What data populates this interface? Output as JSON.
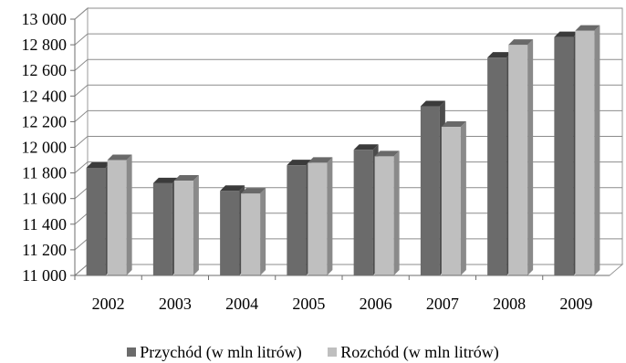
{
  "chart_data": {
    "type": "bar",
    "style": "3d-clustered-column",
    "categories": [
      "2002",
      "2003",
      "2004",
      "2005",
      "2006",
      "2007",
      "2008",
      "2009"
    ],
    "series": [
      {
        "name": "Przychód (w mln litrów)",
        "color": "#6b6b6b",
        "values": [
          11840,
          11720,
          11660,
          11860,
          11980,
          12320,
          12700,
          12860
        ]
      },
      {
        "name": "Rozchód (w mln litrów)",
        "color": "#bfbfbf",
        "values": [
          11900,
          11740,
          11640,
          11880,
          11930,
          12160,
          12800,
          12910
        ]
      }
    ],
    "ylim": [
      11000,
      13000
    ],
    "ytick_step": 200,
    "ytick_labels": [
      "11 000",
      "11 200",
      "11 400",
      "11 600",
      "11 800",
      "12 000",
      "12 200",
      "12 400",
      "12 600",
      "12 800",
      "13 000"
    ],
    "grid": true,
    "legend_position": "bottom"
  }
}
